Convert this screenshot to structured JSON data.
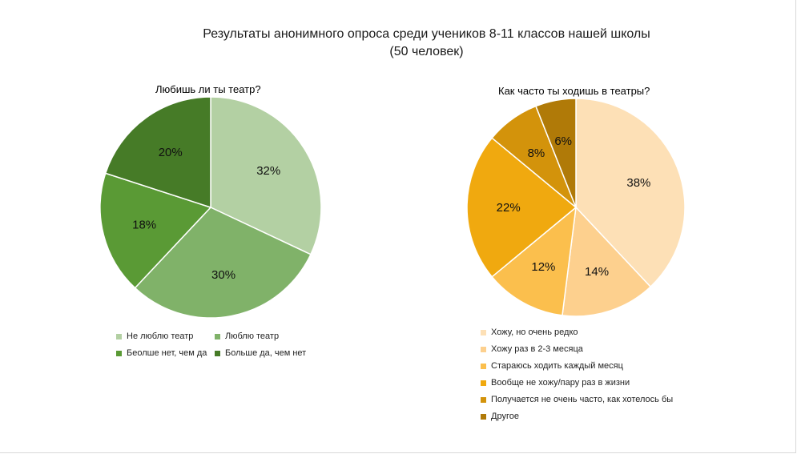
{
  "main_title_line1": "Результаты анонимного опроса среди учеников 8-11 классов нашей школы",
  "main_title_line2": "(50 человек)",
  "chart_data": [
    {
      "type": "pie",
      "title": "Любишь ли ты театр?",
      "categories": [
        "Не люблю театр",
        "Люблю театр",
        "Беолше нет, чем да",
        "Больше да, чем нет"
      ],
      "values": [
        32,
        30,
        18,
        20
      ],
      "labels": [
        "32%",
        "30%",
        "18%",
        "20%"
      ],
      "colors": [
        "#b3d0a3",
        "#80b269",
        "#5a9a35",
        "#467b27"
      ],
      "legend": "bottom"
    },
    {
      "type": "pie",
      "title": "Как часто ты ходишь в театры?",
      "categories": [
        "Хожу, но очень редко",
        "Хожу раз в 2-3 месяца",
        "Стараюсь ходить каждый месяц",
        "Вообще не хожу/пару раз в жизни",
        "Получается не очень часто, как хотелось бы",
        "Другое"
      ],
      "values": [
        38,
        14,
        12,
        22,
        8,
        6
      ],
      "labels": [
        "38%",
        "14%",
        "12%",
        "22%",
        "8%",
        "6%"
      ],
      "colors": [
        "#fde0b6",
        "#fdd08e",
        "#fbbf4d",
        "#f0a90f",
        "#d3930b",
        "#b07a08"
      ],
      "legend": "bottom"
    }
  ]
}
